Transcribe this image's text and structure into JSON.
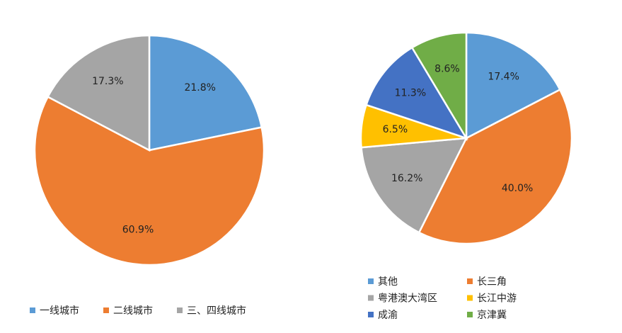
{
  "chart_data": [
    {
      "type": "pie",
      "categories": [
        "一线城市",
        "二线城市",
        "三、四线城市"
      ],
      "values": [
        21.8,
        60.9,
        17.3
      ],
      "value_labels": [
        "21.8%",
        "60.9%",
        "17.3%"
      ],
      "colors": [
        "#5b9bd5",
        "#ed7d31",
        "#a5a5a5"
      ]
    },
    {
      "type": "pie",
      "categories": [
        "其他",
        "长三角",
        "粤港澳大湾区",
        "长江中游",
        "成渝",
        "京津冀"
      ],
      "values": [
        17.4,
        40.0,
        16.2,
        6.5,
        11.3,
        8.6
      ],
      "value_labels": [
        "17.4%",
        "40.0%",
        "16.2%",
        "6.5%",
        "11.3%",
        "8.6%"
      ],
      "colors": [
        "#5b9bd5",
        "#ed7d31",
        "#a5a5a5",
        "#ffc000",
        "#4472c4",
        "#70ad47"
      ]
    }
  ]
}
